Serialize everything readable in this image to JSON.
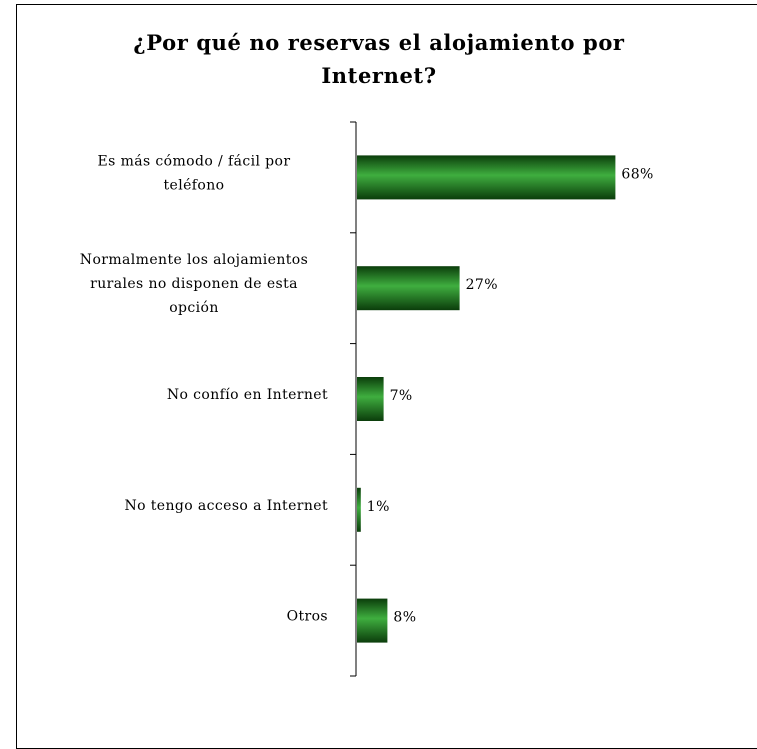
{
  "chart_data": {
    "type": "bar",
    "orientation": "horizontal",
    "title": "¿Por qué no reservas el alojamiento por Internet?",
    "categories": [
      [
        "Es más cómodo / fácil por",
        "teléfono"
      ],
      [
        "Normalmente los alojamientos",
        "rurales no disponen de esta",
        "opción"
      ],
      [
        "No confío en Internet"
      ],
      [
        "No tengo acceso a Internet"
      ],
      [
        "Otros"
      ]
    ],
    "values": [
      68,
      27,
      7,
      1,
      8
    ],
    "data_labels": [
      "68%",
      "27%",
      "7%",
      "1%",
      "8%"
    ],
    "unit": "%",
    "xlim": [
      0,
      100
    ],
    "grid": false,
    "legend": "none",
    "colors": {
      "bar_dark": "#0b3d0b",
      "bar_mid": "#1f8a1f",
      "bar_light": "#3fae3f",
      "axis": "#000000"
    }
  }
}
